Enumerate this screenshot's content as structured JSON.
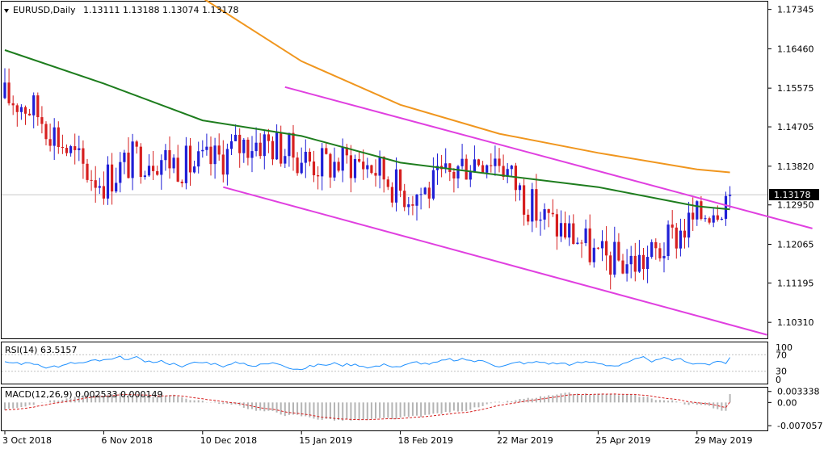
{
  "header": {
    "symbol_label": "EURUSD,Daily",
    "ohlc": "1.13111 1.13188 1.13074 1.13178"
  },
  "price_panel": {
    "y_ticks": [
      "1.17345",
      "1.16460",
      "1.15575",
      "1.14705",
      "1.13820",
      "1.12950",
      "1.12065",
      "1.11195",
      "1.10310"
    ],
    "y_tick_values": [
      1.17345,
      1.1646,
      1.15575,
      1.14705,
      1.1382,
      1.1295,
      1.12065,
      1.11195,
      1.1031
    ],
    "current_price_label": "1.13178",
    "current_price": 1.13178,
    "ylim": [
      1.0995,
      1.1752
    ],
    "x_ticks": [
      "3 Oct 2018",
      "6 Nov 2018",
      "10 Dec 2018",
      "15 Jan 2019",
      "18 Feb 2019",
      "22 Mar 2019",
      "25 Apr 2019",
      "29 May 2019"
    ],
    "x_tick_bars": [
      0,
      24,
      48,
      72,
      96,
      120,
      144,
      168
    ]
  },
  "rsi_panel": {
    "label": "RSI(14) 63.5157",
    "y_ticks": [
      "100",
      "70",
      "30",
      "0"
    ],
    "y_tick_values": [
      100,
      70,
      30,
      0
    ]
  },
  "macd_panel": {
    "label": "MACD(12,26,9) 0.002533 0.000149",
    "y_ticks": [
      "0.003338",
      "0.00",
      "-0.007057"
    ],
    "y_tick_values": [
      0.003338,
      0.0,
      -0.007057
    ]
  },
  "colors": {
    "bull": "#1f1fd6",
    "bear": "#d61f1f",
    "ma_green": "#1e7d1e",
    "ma_orange": "#f0961e",
    "channel": "#e040e0",
    "rsi_line": "#1e90ff",
    "macd_hist": "#b4b4b4",
    "macd_signal": "#d61f1f"
  },
  "chart_data": {
    "type": "line",
    "title": "EURUSD,Daily",
    "series": [
      {
        "name": "",
        "x": [
          0,
          24,
          48,
          72,
          96,
          120,
          144,
          168,
          176
        ],
        "values": [
          1.1535,
          1.1365,
          1.1408,
          1.1423,
          1.1335,
          1.1392,
          1.1152,
          1.1242,
          1.13178
        ]
      }
    ],
    "ma_green": [
      [
        0,
        1.1643
      ],
      [
        24,
        1.1568
      ],
      [
        48,
        1.1485
      ],
      [
        72,
        1.145
      ],
      [
        96,
        1.139
      ],
      [
        120,
        1.1362
      ],
      [
        144,
        1.1335
      ],
      [
        168,
        1.1292
      ],
      [
        176,
        1.1285
      ]
    ],
    "ma_orange": [
      [
        48,
        1.176
      ],
      [
        72,
        1.1618
      ],
      [
        96,
        1.152
      ],
      [
        120,
        1.1455
      ],
      [
        144,
        1.1412
      ],
      [
        168,
        1.1375
      ],
      [
        176,
        1.1368
      ]
    ],
    "channel_upper": [
      [
        68,
        1.156
      ],
      [
        196,
        1.1242
      ]
    ],
    "channel_lower": [
      [
        53,
        1.1335
      ],
      [
        185,
        1.1003
      ]
    ],
    "rsi_last": 63.5157,
    "macd_last": [
      0.002533,
      0.000149
    ]
  }
}
